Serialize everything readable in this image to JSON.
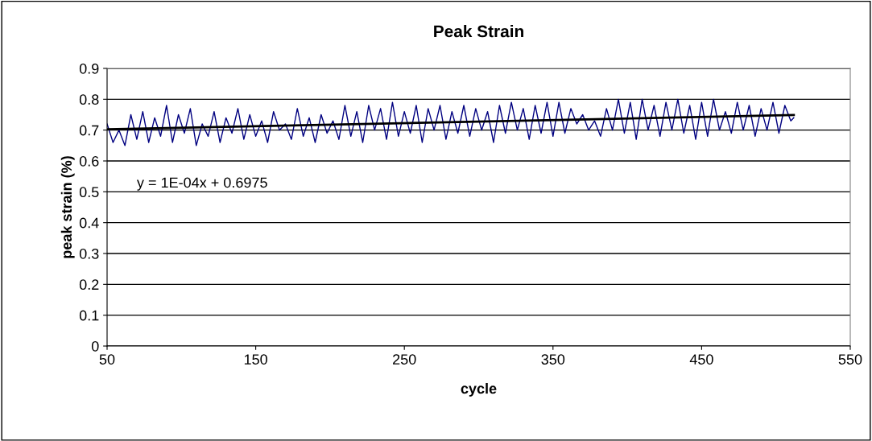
{
  "chart_data": {
    "type": "line",
    "title": "Peak Strain",
    "xlabel": "cycle",
    "ylabel": "peak strain (%)",
    "xlim": [
      50,
      550
    ],
    "xticks": [
      50,
      150,
      250,
      350,
      450,
      550
    ],
    "ylim": [
      0,
      0.9
    ],
    "yticks": [
      0,
      0.1,
      0.2,
      0.3,
      0.4,
      0.5,
      0.6,
      0.7,
      0.8,
      0.9
    ],
    "grid": "y",
    "legend": false,
    "marker": "none",
    "line_style": "solid",
    "annotations": [
      "y = 1E-04x + 0.6975"
    ],
    "series": [
      {
        "color": "#000080",
        "x": [
          50,
          54,
          58,
          62,
          66,
          70,
          74,
          78,
          82,
          86,
          90,
          94,
          98,
          102,
          106,
          110,
          114,
          118,
          122,
          126,
          130,
          134,
          138,
          142,
          146,
          150,
          154,
          158,
          162,
          166,
          170,
          174,
          178,
          182,
          186,
          190,
          194,
          198,
          202,
          206,
          210,
          214,
          218,
          222,
          226,
          230,
          234,
          238,
          242,
          246,
          250,
          254,
          258,
          262,
          266,
          270,
          274,
          278,
          282,
          286,
          290,
          294,
          298,
          302,
          306,
          310,
          314,
          318,
          322,
          326,
          330,
          334,
          338,
          342,
          346,
          350,
          354,
          358,
          362,
          366,
          370,
          374,
          378,
          382,
          386,
          390,
          394,
          398,
          402,
          406,
          410,
          414,
          418,
          422,
          426,
          430,
          434,
          438,
          442,
          446,
          450,
          454,
          458,
          462,
          466,
          470,
          474,
          478,
          482,
          486,
          490,
          494,
          498,
          502,
          506,
          510,
          512
        ],
        "values": [
          0.72,
          0.66,
          0.7,
          0.65,
          0.75,
          0.67,
          0.76,
          0.66,
          0.74,
          0.68,
          0.78,
          0.66,
          0.75,
          0.69,
          0.77,
          0.65,
          0.72,
          0.68,
          0.76,
          0.66,
          0.74,
          0.69,
          0.77,
          0.67,
          0.75,
          0.68,
          0.73,
          0.66,
          0.76,
          0.7,
          0.72,
          0.67,
          0.77,
          0.68,
          0.74,
          0.66,
          0.75,
          0.69,
          0.73,
          0.67,
          0.78,
          0.68,
          0.76,
          0.66,
          0.78,
          0.7,
          0.77,
          0.67,
          0.79,
          0.68,
          0.76,
          0.69,
          0.78,
          0.66,
          0.77,
          0.7,
          0.78,
          0.67,
          0.76,
          0.69,
          0.78,
          0.68,
          0.77,
          0.7,
          0.76,
          0.66,
          0.78,
          0.69,
          0.79,
          0.7,
          0.77,
          0.67,
          0.78,
          0.69,
          0.79,
          0.68,
          0.79,
          0.69,
          0.77,
          0.72,
          0.75,
          0.7,
          0.73,
          0.68,
          0.77,
          0.7,
          0.8,
          0.69,
          0.79,
          0.67,
          0.8,
          0.7,
          0.78,
          0.68,
          0.79,
          0.7,
          0.8,
          0.69,
          0.78,
          0.67,
          0.79,
          0.68,
          0.8,
          0.7,
          0.76,
          0.69,
          0.79,
          0.7,
          0.78,
          0.68,
          0.77,
          0.7,
          0.79,
          0.69,
          0.78,
          0.73,
          0.74
        ]
      },
      {
        "type": "line",
        "color": "#000000",
        "x": [
          50,
          512
        ],
        "values": [
          0.7025,
          0.7487
        ]
      }
    ]
  }
}
